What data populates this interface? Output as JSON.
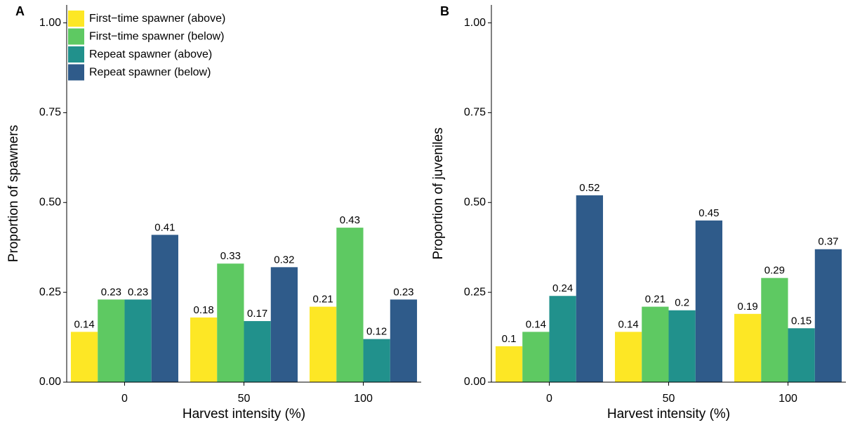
{
  "chart_data": [
    {
      "type": "bar",
      "panel_label": "A",
      "x_label": "Harvest intensity (%)",
      "y_label": "Proportion of spawners",
      "categories": [
        "0",
        "50",
        "100"
      ],
      "series": [
        {
          "name": "First−time spawner (above)",
          "color": "#fde725",
          "values": [
            0.14,
            0.18,
            0.21
          ]
        },
        {
          "name": "First−time spawner (below)",
          "color": "#5ec962",
          "values": [
            0.23,
            0.33,
            0.43
          ]
        },
        {
          "name": "Repeat spawner (above)",
          "color": "#21918c",
          "values": [
            0.23,
            0.17,
            0.12
          ]
        },
        {
          "name": "Repeat spawner (below)",
          "color": "#2f5b8a",
          "values": [
            0.41,
            0.32,
            0.23
          ]
        }
      ],
      "ylim": [
        0,
        1.05
      ],
      "yticks": [
        {
          "value": 0,
          "label": "0.00"
        },
        {
          "value": 0.25,
          "label": "0.25"
        },
        {
          "value": 0.5,
          "label": "0.50"
        },
        {
          "value": 0.75,
          "label": "0.75"
        },
        {
          "value": 1,
          "label": "1.00"
        }
      ],
      "legend": "top-left"
    },
    {
      "type": "bar",
      "panel_label": "B",
      "x_label": "Harvest intensity (%)",
      "y_label": "Proportion of juveniles",
      "categories": [
        "0",
        "50",
        "100"
      ],
      "series": [
        {
          "color": "#fde725",
          "values": [
            0.1,
            0.14,
            0.19
          ]
        },
        {
          "color": "#5ec962",
          "values": [
            0.14,
            0.21,
            0.29
          ]
        },
        {
          "color": "#21918c",
          "values": [
            0.24,
            0.2,
            0.15
          ]
        },
        {
          "color": "#2f5b8a",
          "values": [
            0.52,
            0.45,
            0.37
          ]
        }
      ],
      "ylim": [
        0,
        1.05
      ],
      "yticks": [
        {
          "value": 0,
          "label": "0.00"
        },
        {
          "value": 0.25,
          "label": "0.25"
        },
        {
          "value": 0.5,
          "label": "0.50"
        },
        {
          "value": 0.75,
          "label": "0.75"
        },
        {
          "value": 1,
          "label": "1.00"
        }
      ]
    }
  ]
}
